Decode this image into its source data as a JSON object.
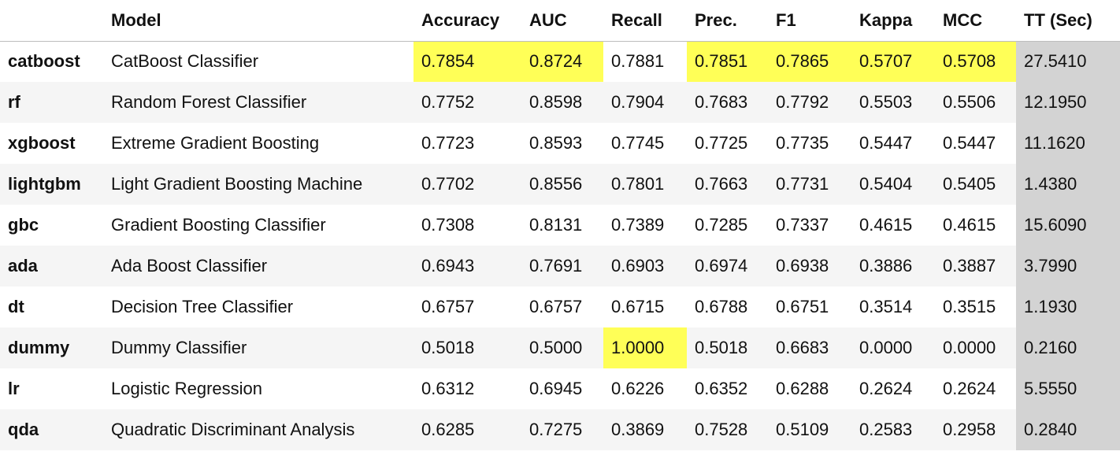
{
  "table": {
    "columns": {
      "index": "",
      "model": "Model",
      "accuracy": "Accuracy",
      "auc": "AUC",
      "recall": "Recall",
      "prec": "Prec.",
      "f1": "F1",
      "kappa": "Kappa",
      "mcc": "MCC",
      "tt": "TT (Sec)"
    },
    "rows": [
      {
        "id": "catboost",
        "model": "CatBoost Classifier",
        "accuracy": "0.7854",
        "auc": "0.8724",
        "recall": "0.7881",
        "prec": "0.7851",
        "f1": "0.7865",
        "kappa": "0.5707",
        "mcc": "0.5708",
        "tt": "27.5410"
      },
      {
        "id": "rf",
        "model": "Random Forest Classifier",
        "accuracy": "0.7752",
        "auc": "0.8598",
        "recall": "0.7904",
        "prec": "0.7683",
        "f1": "0.7792",
        "kappa": "0.5503",
        "mcc": "0.5506",
        "tt": "12.1950"
      },
      {
        "id": "xgboost",
        "model": "Extreme Gradient Boosting",
        "accuracy": "0.7723",
        "auc": "0.8593",
        "recall": "0.7745",
        "prec": "0.7725",
        "f1": "0.7735",
        "kappa": "0.5447",
        "mcc": "0.5447",
        "tt": "11.1620"
      },
      {
        "id": "lightgbm",
        "model": "Light Gradient Boosting Machine",
        "accuracy": "0.7702",
        "auc": "0.8556",
        "recall": "0.7801",
        "prec": "0.7663",
        "f1": "0.7731",
        "kappa": "0.5404",
        "mcc": "0.5405",
        "tt": "1.4380"
      },
      {
        "id": "gbc",
        "model": "Gradient Boosting Classifier",
        "accuracy": "0.7308",
        "auc": "0.8131",
        "recall": "0.7389",
        "prec": "0.7285",
        "f1": "0.7337",
        "kappa": "0.4615",
        "mcc": "0.4615",
        "tt": "15.6090"
      },
      {
        "id": "ada",
        "model": "Ada Boost Classifier",
        "accuracy": "0.6943",
        "auc": "0.7691",
        "recall": "0.6903",
        "prec": "0.6974",
        "f1": "0.6938",
        "kappa": "0.3886",
        "mcc": "0.3887",
        "tt": "3.7990"
      },
      {
        "id": "dt",
        "model": "Decision Tree Classifier",
        "accuracy": "0.6757",
        "auc": "0.6757",
        "recall": "0.6715",
        "prec": "0.6788",
        "f1": "0.6751",
        "kappa": "0.3514",
        "mcc": "0.3515",
        "tt": "1.1930"
      },
      {
        "id": "dummy",
        "model": "Dummy Classifier",
        "accuracy": "0.5018",
        "auc": "0.5000",
        "recall": "1.0000",
        "prec": "0.5018",
        "f1": "0.6683",
        "kappa": "0.0000",
        "mcc": "0.0000",
        "tt": "0.2160"
      },
      {
        "id": "lr",
        "model": "Logistic Regression",
        "accuracy": "0.6312",
        "auc": "0.6945",
        "recall": "0.6226",
        "prec": "0.6352",
        "f1": "0.6288",
        "kappa": "0.2624",
        "mcc": "0.2624",
        "tt": "5.5550"
      },
      {
        "id": "qda",
        "model": "Quadratic Discriminant Analysis",
        "accuracy": "0.6285",
        "auc": "0.7275",
        "recall": "0.3869",
        "prec": "0.7528",
        "f1": "0.5109",
        "kappa": "0.2583",
        "mcc": "0.2958",
        "tt": "0.2840"
      }
    ],
    "styles": {
      "highlight_color": "#ffff57",
      "tt_column_color": "#d3d3d3",
      "stripe_color": "#f5f5f5",
      "highlighted_cells": [
        {
          "row": "catboost",
          "column": "accuracy"
        },
        {
          "row": "catboost",
          "column": "auc"
        },
        {
          "row": "catboost",
          "column": "prec"
        },
        {
          "row": "catboost",
          "column": "f1"
        },
        {
          "row": "catboost",
          "column": "kappa"
        },
        {
          "row": "catboost",
          "column": "mcc"
        },
        {
          "row": "dummy",
          "column": "recall"
        }
      ]
    }
  }
}
